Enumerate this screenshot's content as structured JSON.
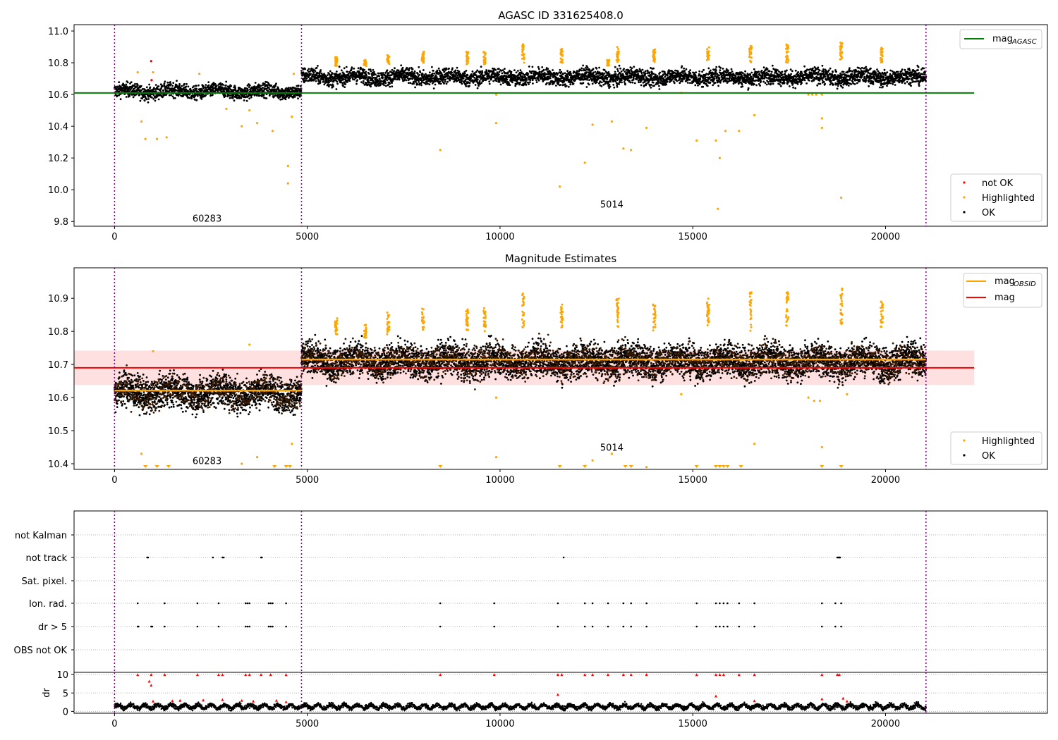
{
  "chart_data": [
    {
      "type": "scatter",
      "title": "AGASC ID 331625408.0",
      "xlim": [
        -1050,
        24200
      ],
      "ylim": [
        9.77,
        11.04
      ],
      "xticks": [
        0,
        5000,
        10000,
        15000,
        20000
      ],
      "yticks": [
        9.8,
        10.0,
        10.2,
        10.4,
        10.6,
        10.8,
        11.0
      ],
      "ytick_labels": [
        "9.8",
        "10.0",
        "10.2",
        "10.4",
        "10.6",
        "10.8",
        "11.0"
      ],
      "grid": false,
      "legend_top": {
        "position": "top-right",
        "entries": [
          {
            "label": "mag",
            "sub": "AGASC",
            "color": "#008000",
            "kind": "line"
          }
        ]
      },
      "legend_bottom": {
        "position": "bottom-right",
        "entries": [
          {
            "label": "not OK",
            "color": "#ff0000",
            "kind": "dot"
          },
          {
            "label": "Highlighted",
            "color": "#ffa500",
            "kind": "dot"
          },
          {
            "label": "OK",
            "color": "#000000",
            "kind": "dot"
          }
        ]
      },
      "obsid_boundaries": [
        0,
        4850,
        21050
      ],
      "obsid_labels": [
        {
          "text": "60283",
          "x": 2400,
          "y": 9.82
        },
        {
          "text": "5014",
          "x": 12900,
          "y": 9.91
        }
      ],
      "reference_lines": [
        {
          "name": "mag_AGASC",
          "y": 10.61,
          "x": [
            -1050,
            22300
          ],
          "color": "#008000"
        }
      ],
      "series": [
        {
          "label": "OK",
          "color": "#000000",
          "segments": [
            {
              "x": [
                0,
                4850
              ],
              "mean": 10.62,
              "spread": 0.04
            },
            {
              "x": [
                4850,
                21050
              ],
              "mean": 10.71,
              "spread": 0.045
            }
          ]
        },
        {
          "label": "Highlighted",
          "color": "#ffa500",
          "points": [
            [
              600,
              10.74
            ],
            [
              700,
              10.43
            ],
            [
              800,
              10.32
            ],
            [
              1100,
              10.32
            ],
            [
              1350,
              10.33
            ],
            [
              1000,
              10.74
            ],
            [
              3300,
              10.4
            ],
            [
              3700,
              10.42
            ],
            [
              4100,
              10.37
            ],
            [
              4500,
              10.15
            ],
            [
              4500,
              10.04
            ],
            [
              4600,
              10.46
            ],
            [
              4650,
              10.73
            ],
            [
              3500,
              10.5
            ],
            [
              2200,
              10.73
            ],
            [
              2900,
              10.51
            ],
            [
              8450,
              10.25
            ],
            [
              9900,
              10.42
            ],
            [
              9900,
              10.6
            ],
            [
              11550,
              10.02
            ],
            [
              12200,
              10.17
            ],
            [
              12400,
              10.41
            ],
            [
              12900,
              10.43
            ],
            [
              13200,
              10.26
            ],
            [
              13400,
              10.25
            ],
            [
              13800,
              10.39
            ],
            [
              15100,
              10.31
            ],
            [
              15600,
              10.31
            ],
            [
              15700,
              10.2
            ],
            [
              15850,
              10.37
            ],
            [
              16200,
              10.37
            ],
            [
              16600,
              10.47
            ],
            [
              18350,
              10.45
            ],
            [
              18350,
              10.39
            ],
            [
              18850,
              9.95
            ],
            [
              15650,
              9.88
            ],
            [
              14700,
              10.61
            ],
            [
              18000,
              10.6
            ],
            [
              18100,
              10.6
            ],
            [
              18200,
              10.6
            ],
            [
              18350,
              10.6
            ]
          ],
          "clusters": [
            {
              "x": 5750,
              "ymin": 10.78,
              "ymax": 10.84
            },
            {
              "x": 6500,
              "ymin": 10.78,
              "ymax": 10.82
            },
            {
              "x": 7100,
              "ymin": 10.79,
              "ymax": 10.85
            },
            {
              "x": 8000,
              "ymin": 10.8,
              "ymax": 10.87
            },
            {
              "x": 9150,
              "ymin": 10.79,
              "ymax": 10.87
            },
            {
              "x": 9600,
              "ymin": 10.79,
              "ymax": 10.87
            },
            {
              "x": 10600,
              "ymin": 10.8,
              "ymax": 10.92
            },
            {
              "x": 11600,
              "ymin": 10.8,
              "ymax": 10.89
            },
            {
              "x": 12800,
              "ymin": 10.78,
              "ymax": 10.82
            },
            {
              "x": 13050,
              "ymin": 10.8,
              "ymax": 10.9
            },
            {
              "x": 14000,
              "ymin": 10.8,
              "ymax": 10.89
            },
            {
              "x": 15400,
              "ymin": 10.81,
              "ymax": 10.9
            },
            {
              "x": 16500,
              "ymin": 10.8,
              "ymax": 10.91
            },
            {
              "x": 17450,
              "ymin": 10.8,
              "ymax": 10.92
            },
            {
              "x": 18850,
              "ymin": 10.82,
              "ymax": 10.93
            },
            {
              "x": 19900,
              "ymin": 10.8,
              "ymax": 10.9
            }
          ]
        },
        {
          "label": "not OK",
          "color": "#ff0000",
          "points": [
            [
              950,
              10.81
            ],
            [
              960,
              10.69
            ]
          ]
        }
      ]
    },
    {
      "type": "scatter",
      "title": "Magnitude Estimates",
      "xlim": [
        -1050,
        24200
      ],
      "ylim": [
        10.383,
        10.992
      ],
      "xticks": [
        0,
        5000,
        10000,
        15000,
        20000
      ],
      "yticks": [
        10.4,
        10.5,
        10.6,
        10.7,
        10.8,
        10.9
      ],
      "ytick_labels": [
        "10.4",
        "10.5",
        "10.6",
        "10.7",
        "10.8",
        "10.9"
      ],
      "grid": false,
      "legend_top": {
        "position": "top-right",
        "entries": [
          {
            "label": "mag",
            "sub": "OBSID",
            "color": "#ffa500",
            "kind": "line"
          },
          {
            "label": "mag",
            "sub": "",
            "color": "#ff0000",
            "kind": "line"
          }
        ]
      },
      "legend_bottom": {
        "position": "bottom-right",
        "entries": [
          {
            "label": "Highlighted",
            "color": "#ffa500",
            "kind": "dot"
          },
          {
            "label": "OK",
            "color": "#000000",
            "kind": "dot"
          }
        ]
      },
      "obsid_boundaries": [
        0,
        4850,
        21050
      ],
      "obsid_labels": [
        {
          "text": "60283",
          "x": 2400,
          "y": 10.41
        },
        {
          "text": "5014",
          "x": 12900,
          "y": 10.45
        }
      ],
      "mag": {
        "value": 10.69,
        "band": [
          10.638,
          10.742
        ],
        "x": [
          -1050,
          22300
        ],
        "color": "#ff0000"
      },
      "mag_obsid": [
        {
          "x": [
            0,
            4850
          ],
          "value": 10.621
        },
        {
          "x": [
            4850,
            21050
          ],
          "value": 10.715
        }
      ],
      "series": [
        {
          "label": "OK",
          "color": "#000000",
          "segments": [
            {
              "x": [
                0,
                4850
              ],
              "mean": 10.615,
              "spread": 0.045
            },
            {
              "x": [
                4850,
                21050
              ],
              "mean": 10.71,
              "spread": 0.045
            }
          ]
        },
        {
          "label": "Highlighted",
          "color": "#ffa500",
          "points": [
            [
              700,
              10.43
            ],
            [
              1000,
              10.74
            ],
            [
              3300,
              10.4
            ],
            [
              3700,
              10.42
            ],
            [
              4600,
              10.46
            ],
            [
              3500,
              10.76
            ],
            [
              9900,
              10.42
            ],
            [
              9900,
              10.6
            ],
            [
              12400,
              10.41
            ],
            [
              12900,
              10.43
            ],
            [
              13800,
              10.39
            ],
            [
              16600,
              10.46
            ],
            [
              18350,
              10.45
            ],
            [
              14700,
              10.61
            ],
            [
              18000,
              10.6
            ],
            [
              18150,
              10.59
            ],
            [
              18300,
              10.59
            ],
            [
              19000,
              10.61
            ]
          ],
          "clipped_x": [
            800,
            1100,
            1400,
            4150,
            4450,
            4550,
            8450,
            11550,
            12200,
            13250,
            13400,
            15100,
            15600,
            15700,
            15800,
            15900,
            16250,
            18350,
            18850
          ],
          "clusters": [
            {
              "x": 5750,
              "ymin": 10.79,
              "ymax": 10.84
            },
            {
              "x": 6500,
              "ymin": 10.78,
              "ymax": 10.82
            },
            {
              "x": 7100,
              "ymin": 10.79,
              "ymax": 10.86
            },
            {
              "x": 8000,
              "ymin": 10.8,
              "ymax": 10.87
            },
            {
              "x": 9150,
              "ymin": 10.8,
              "ymax": 10.87
            },
            {
              "x": 9600,
              "ymin": 10.8,
              "ymax": 10.87
            },
            {
              "x": 10600,
              "ymin": 10.81,
              "ymax": 10.92
            },
            {
              "x": 11600,
              "ymin": 10.8,
              "ymax": 10.89
            },
            {
              "x": 13050,
              "ymin": 10.81,
              "ymax": 10.9
            },
            {
              "x": 14000,
              "ymin": 10.8,
              "ymax": 10.89
            },
            {
              "x": 15400,
              "ymin": 10.81,
              "ymax": 10.9
            },
            {
              "x": 16500,
              "ymin": 10.8,
              "ymax": 10.92
            },
            {
              "x": 17450,
              "ymin": 10.81,
              "ymax": 10.92
            },
            {
              "x": 18850,
              "ymin": 10.82,
              "ymax": 10.93
            },
            {
              "x": 19900,
              "ymin": 10.81,
              "ymax": 10.9
            }
          ]
        }
      ]
    },
    {
      "type": "scatter",
      "title": "",
      "xlim": [
        -1050,
        24200
      ],
      "categories": [
        "not Kalman",
        "not track",
        "Sat. pixel.",
        "Ion. rad.",
        "dr > 5",
        "OBS not OK"
      ],
      "grid": true,
      "obsid_boundaries": [
        0,
        4850,
        21050
      ],
      "flags": {
        "not track": [
          850,
          870,
          2550,
          2800,
          2830,
          3800,
          3820,
          11650,
          18750,
          18780,
          18800,
          18820
        ],
        "Ion. rad.": [
          600,
          1300,
          2150,
          2700,
          3400,
          3450,
          3500,
          4000,
          4050,
          4100,
          4450,
          8450,
          9850,
          11500,
          12200,
          12400,
          12800,
          13200,
          13400,
          13800,
          15100,
          15600,
          15700,
          15800,
          15900,
          16200,
          16600,
          18350,
          18700,
          18850
        ],
        "dr > 5": [
          600,
          620,
          950,
          980,
          1300,
          2150,
          2700,
          3400,
          3450,
          3500,
          4000,
          4050,
          4100,
          4450,
          8450,
          9850,
          11500,
          12200,
          12400,
          12800,
          13200,
          13400,
          13800,
          15100,
          15600,
          15700,
          15800,
          15900,
          16200,
          16600,
          18350,
          18700,
          18850
        ]
      }
    },
    {
      "type": "scatter",
      "title": "",
      "ylabel": "dr",
      "xlim": [
        -1050,
        24200
      ],
      "ylim": [
        -0.5,
        10.6
      ],
      "xticks": [
        0,
        5000,
        10000,
        15000,
        20000
      ],
      "yticks": [
        0,
        5,
        10
      ],
      "ytick_labels": [
        "0",
        "5",
        "10"
      ],
      "grid": true,
      "obsid_boundaries": [
        0,
        4850,
        21050
      ],
      "series": [
        {
          "label": "dr",
          "color": "#000000",
          "x": [
            0,
            21050
          ],
          "mean": 1.3,
          "spread": 0.6
        },
        {
          "label": "dr > 5",
          "color": "#ff0000",
          "points": [
            [
              600,
              10
            ],
            [
              950,
              10
            ],
            [
              1300,
              10
            ],
            [
              2150,
              10
            ],
            [
              2700,
              10
            ],
            [
              2800,
              10
            ],
            [
              3400,
              10
            ],
            [
              3500,
              10
            ],
            [
              3800,
              10
            ],
            [
              4050,
              10
            ],
            [
              4450,
              10
            ],
            [
              8450,
              10
            ],
            [
              9850,
              10
            ],
            [
              11500,
              10
            ],
            [
              11600,
              10
            ],
            [
              12200,
              10
            ],
            [
              12400,
              10
            ],
            [
              12800,
              10
            ],
            [
              13200,
              10
            ],
            [
              13400,
              10
            ],
            [
              13800,
              10
            ],
            [
              15100,
              10
            ],
            [
              15600,
              10
            ],
            [
              15700,
              10
            ],
            [
              15800,
              10
            ],
            [
              16200,
              10
            ],
            [
              16600,
              10
            ],
            [
              18350,
              10
            ],
            [
              18750,
              10
            ],
            [
              18800,
              10
            ],
            [
              900,
              8.2
            ],
            [
              950,
              7.1
            ],
            [
              1000,
              2.8
            ],
            [
              1500,
              2.9
            ],
            [
              1700,
              3.0
            ],
            [
              2300,
              3.1
            ],
            [
              2800,
              3.2
            ],
            [
              3300,
              3.0
            ],
            [
              3600,
              2.8
            ],
            [
              4200,
              3.0
            ],
            [
              4450,
              2.6
            ],
            [
              11500,
              4.6
            ],
            [
              15600,
              4.2
            ],
            [
              16600,
              2.9
            ],
            [
              18350,
              3.4
            ],
            [
              18900,
              3.6
            ],
            [
              19000,
              2.8
            ]
          ]
        }
      ]
    }
  ]
}
